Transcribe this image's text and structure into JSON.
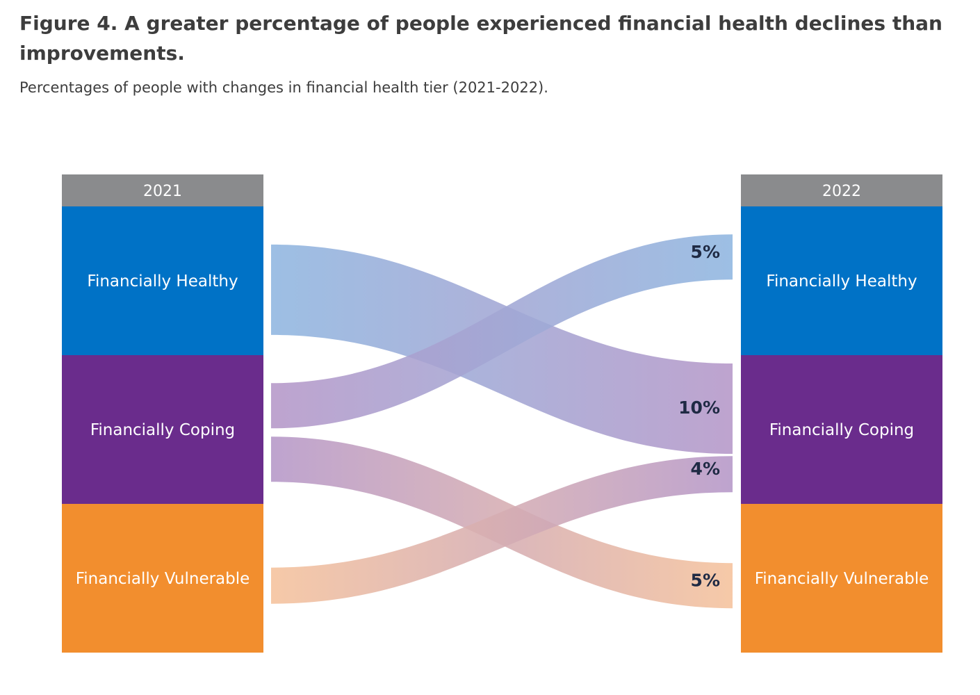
{
  "title": "Figure 4. A greater percentage of people experienced financial health declines than improvements.",
  "subtitle": "Percentages of people with changes in financial health tier (2021-2022).",
  "chart_data": {
    "type": "sankey",
    "columns": [
      "2021",
      "2022"
    ],
    "tiers": [
      {
        "name": "Financially Healthy",
        "color": "#0072c6"
      },
      {
        "name": "Financially Coping",
        "color": "#6a2c8c"
      },
      {
        "name": "Financially Vulnerable",
        "color": "#f28e2e"
      }
    ],
    "header_color": "#8a8b8d",
    "flows": [
      {
        "from": "Financially Healthy",
        "to": "Financially Coping",
        "value": 10,
        "label": "10%",
        "color_from": "#8fb6e0",
        "color_to": "#b597c8"
      },
      {
        "from": "Financially Coping",
        "to": "Financially Healthy",
        "value": 5,
        "label": "5%",
        "color_from": "#b597c8",
        "color_to": "#8fb6e0"
      },
      {
        "from": "Financially Coping",
        "to": "Financially Vulnerable",
        "value": 5,
        "label": "5%",
        "color_from": "#b597c8",
        "color_to": "#f5c29c"
      },
      {
        "from": "Financially Vulnerable",
        "to": "Financially Coping",
        "value": 4,
        "label": "4%",
        "color_from": "#f5c29c",
        "color_to": "#b597c8"
      }
    ]
  }
}
